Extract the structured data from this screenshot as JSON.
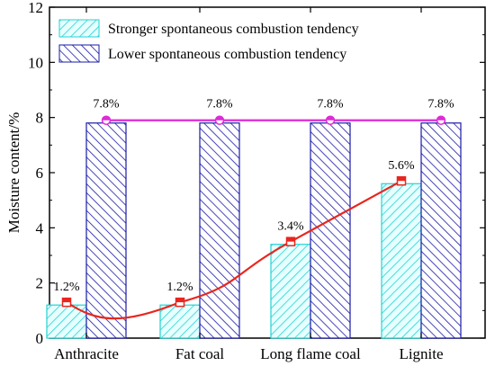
{
  "chart_data": {
    "type": "bar",
    "title": "",
    "xlabel": "",
    "ylabel": "Moisture content/%",
    "ylim": [
      0,
      12
    ],
    "yticks": [
      0,
      2,
      4,
      6,
      8,
      10,
      12
    ],
    "categories": [
      "Anthracite",
      "Fat coal",
      "Long flame coal",
      "Lignite"
    ],
    "series": [
      {
        "name": "Stronger  spontaneous combustion tendency",
        "kind": "bar",
        "pattern": "diagonal-hatch-forward",
        "color": "#22d3d3",
        "fill": "#e6ffff",
        "values": [
          1.2,
          1.2,
          3.4,
          5.6
        ],
        "labels": [
          "1.2%",
          "1.2%",
          "3.4%",
          "5.6%"
        ]
      },
      {
        "name": "Lower  spontaneous combustion tendency",
        "kind": "bar",
        "pattern": "diagonal-hatch-back",
        "color": "#1a1aa8",
        "fill": "#ffffff",
        "values": [
          7.8,
          7.8,
          7.8,
          7.8
        ],
        "labels": [
          "7.8%",
          "7.8%",
          "7.8%",
          "7.8%"
        ]
      }
    ],
    "overlays": [
      {
        "kind": "smooth-line",
        "marker": "square",
        "color": "#e8261e",
        "values": [
          1.3,
          1.3,
          3.5,
          5.7
        ]
      },
      {
        "kind": "line",
        "marker": "circle",
        "color": "#e02ad8",
        "values": [
          7.9,
          7.9,
          7.9,
          7.9
        ]
      }
    ],
    "legend_position": "top-left",
    "grid": false
  }
}
